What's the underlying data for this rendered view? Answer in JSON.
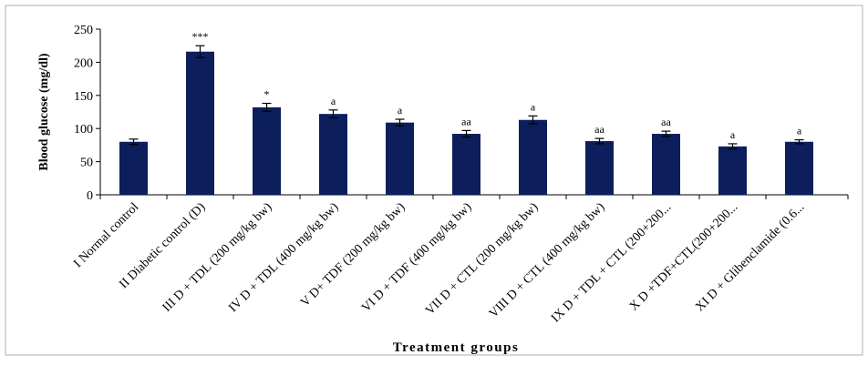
{
  "chart_data": {
    "type": "bar",
    "title": "",
    "xlabel": "Treatment groups",
    "ylabel": "Blood glucose (mg/dl)",
    "ylim": [
      0,
      250
    ],
    "yticks": [
      0,
      50,
      100,
      150,
      200,
      250
    ],
    "grid": false,
    "bar_color": "#0c1f5c",
    "categories": [
      "I Normal control",
      "II Diabetic control (D)",
      "III D + TDL (200 mg/kg bw)",
      "IV D + TDL (400 mg/kg bw)",
      "V D+ TDF (200 mg/kg bw)",
      "VI D + TDF (400 mg/kg bw)",
      "VII D + CTL (200 mg/kg bw)",
      "VIII D + CTL (400 mg/kg bw)",
      "IX D + TDL + CTL (200+200...",
      "X D +TDF+CTL(200+200...",
      "XI D + Glibenclamide (0.6..."
    ],
    "values": [
      80,
      216,
      132,
      122,
      109,
      92,
      113,
      81,
      92,
      73,
      80
    ],
    "errors": [
      4,
      9,
      6,
      6,
      5,
      5,
      6,
      4,
      4,
      4,
      3
    ],
    "annotations": [
      "",
      "***",
      "*",
      "a",
      "a",
      "aa",
      "a",
      "aa",
      "aa",
      "a",
      "a"
    ]
  }
}
